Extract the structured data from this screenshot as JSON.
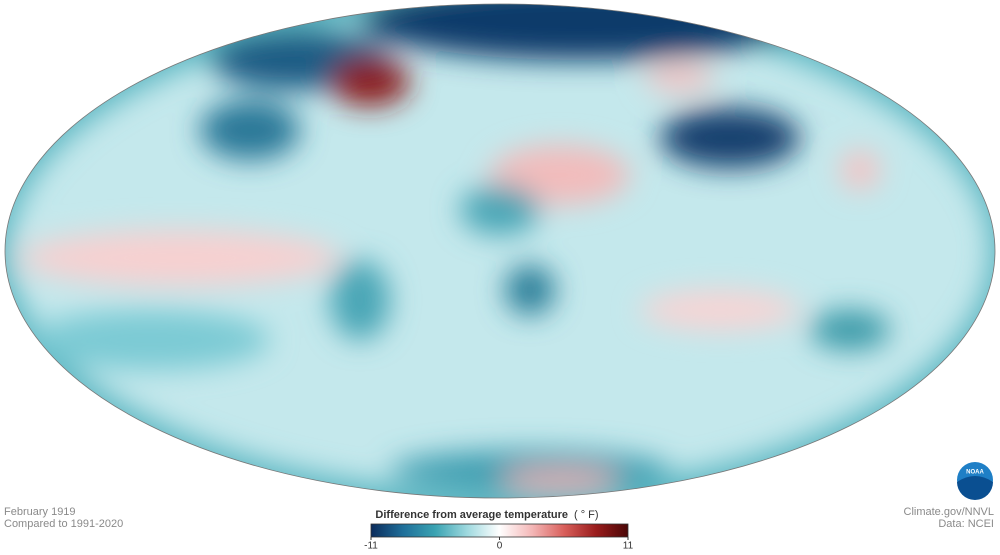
{
  "footer": {
    "date": "February 1919",
    "baseline": "Compared to 1991-2020",
    "credit": "Climate.gov/NNVL",
    "source": "Data: NCEI"
  },
  "logo": "NOAA",
  "legend": {
    "title": "Difference from average temperature",
    "unit": "( ° F)",
    "range": [
      -11,
      11
    ],
    "ticks": [
      -11,
      0,
      11
    ],
    "colors": [
      "#0b2c5c",
      "#1f6f9a",
      "#3aa3b2",
      "#9fd9df",
      "#ffffff",
      "#f4b8b8",
      "#d9605c",
      "#9a1c1c",
      "#4a0606"
    ]
  }
}
